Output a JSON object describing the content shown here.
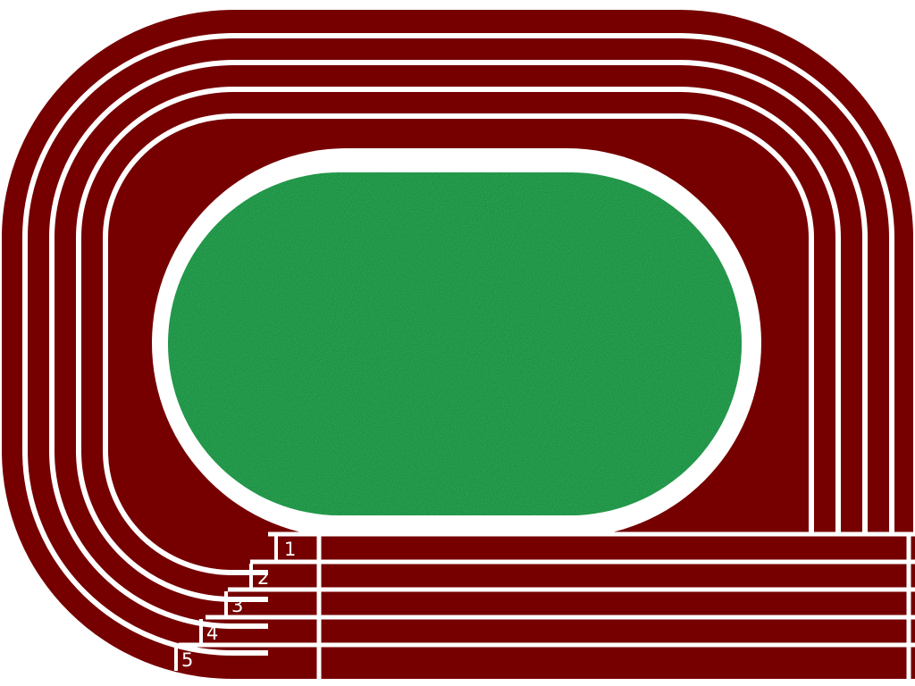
{
  "track": {
    "lane_count": 5,
    "lanes": [
      {
        "number": "1"
      },
      {
        "number": "2"
      },
      {
        "number": "3"
      },
      {
        "number": "4"
      },
      {
        "number": "5"
      }
    ]
  },
  "colors": {
    "track_surface": "#760000",
    "lane_lines": "#ffffff",
    "infield_grass": "#1a9140",
    "infield_grass_dark": "#0f6f2e",
    "background": "#ffffff"
  }
}
